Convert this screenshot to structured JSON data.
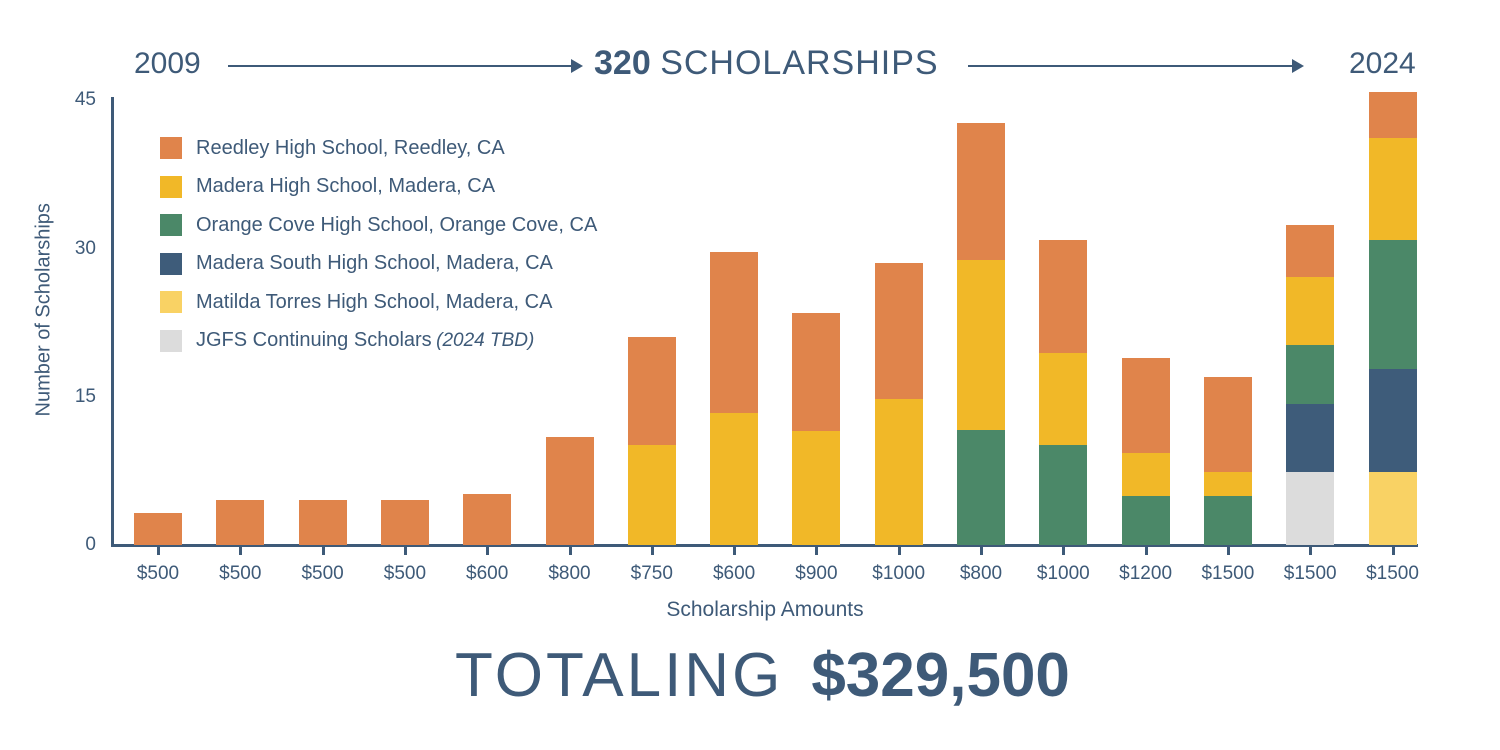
{
  "header": {
    "start_year": "2009",
    "end_year": "2024",
    "count": "320",
    "count_label": "SCHOLARSHIPS"
  },
  "footer": {
    "totaling_label": "TOTALING",
    "total_amount": "$329,500"
  },
  "colors": {
    "reedley": "#E0844B",
    "madera": "#F1B828",
    "orange_cove": "#4B8868",
    "madera_south": "#3E5C7A",
    "matilda_torres": "#F9D264",
    "continuing": "#DCDCDC",
    "text": "#3E5A78"
  },
  "legend": [
    {
      "label": "Reedley High School, Reedley, CA",
      "note": "",
      "color": "#E0844B"
    },
    {
      "label": "Madera High School, Madera, CA",
      "note": "",
      "color": "#F1B828"
    },
    {
      "label": "Orange Cove High School, Orange Cove, CA",
      "note": "",
      "color": "#4B8868"
    },
    {
      "label": "Madera South High School, Madera, CA",
      "note": "",
      "color": "#3E5C7A"
    },
    {
      "label": "Matilda Torres High School, Madera, CA",
      "note": "",
      "color": "#F9D264"
    },
    {
      "label": "JGFS Continuing Scholars",
      "note": "(2024 TBD)",
      "color": "#DCDCDC"
    }
  ],
  "chart_data": {
    "type": "bar",
    "stacked": true,
    "title": "320 SCHOLARSHIPS (2009 → 2024)",
    "xlabel": "Scholarship Amounts",
    "ylabel": "Number of Scholarships",
    "ylim": [
      0,
      45
    ],
    "yticks": [
      "0",
      "15",
      "30",
      "45"
    ],
    "grid": false,
    "legend_position": "upper-left inside",
    "categories": [
      "$500",
      "$500",
      "$500",
      "$500",
      "$600",
      "$800",
      "$750",
      "$600",
      "$900",
      "$1000",
      "$800",
      "$1000",
      "$1200",
      "$1500",
      "$1500",
      "$1500"
    ],
    "series": [
      {
        "name": "JGFS Continuing Scholars (2024 TBD)",
        "color": "#DCDCDC",
        "values": [
          0,
          0,
          0,
          0,
          0,
          0,
          0,
          0,
          0,
          0,
          0,
          0,
          0,
          0,
          7.4,
          0
        ]
      },
      {
        "name": "Matilda Torres High School, Madera, CA",
        "color": "#F9D264",
        "values": [
          0,
          0,
          0,
          0,
          0,
          0,
          0,
          0,
          0,
          0,
          0,
          0,
          0,
          0,
          0,
          7.4
        ]
      },
      {
        "name": "Madera South High School, Madera, CA",
        "color": "#3E5C7A",
        "values": [
          0,
          0,
          0,
          0,
          0,
          0,
          0,
          0,
          0,
          0,
          0,
          0,
          0,
          0,
          6.9,
          10.4
        ]
      },
      {
        "name": "Orange Cove High School, Orange Cove, CA",
        "color": "#4B8868",
        "values": [
          0,
          0,
          0,
          0,
          0,
          0,
          0,
          0,
          0,
          0,
          11.6,
          10.1,
          5.0,
          5.0,
          5.9,
          13.0
        ]
      },
      {
        "name": "Madera High School, Madera, CA",
        "color": "#F1B828",
        "values": [
          0,
          0,
          0,
          0,
          0,
          0,
          10.1,
          13.4,
          11.5,
          14.8,
          17.2,
          9.3,
          4.3,
          2.4,
          6.9,
          10.4
        ]
      },
      {
        "name": "Reedley High School, Reedley, CA",
        "color": "#E0844B",
        "values": [
          3.2,
          4.6,
          4.6,
          4.6,
          5.2,
          10.9,
          10.9,
          16.2,
          12.0,
          13.7,
          13.9,
          11.4,
          9.6,
          9.6,
          5.3,
          4.6
        ]
      }
    ],
    "totals": [
      3.2,
      4.6,
      4.6,
      4.6,
      5.2,
      10.9,
      21.0,
      29.6,
      23.5,
      28.5,
      42.7,
      30.8,
      18.9,
      17.0,
      32.3,
      45.8
    ]
  }
}
